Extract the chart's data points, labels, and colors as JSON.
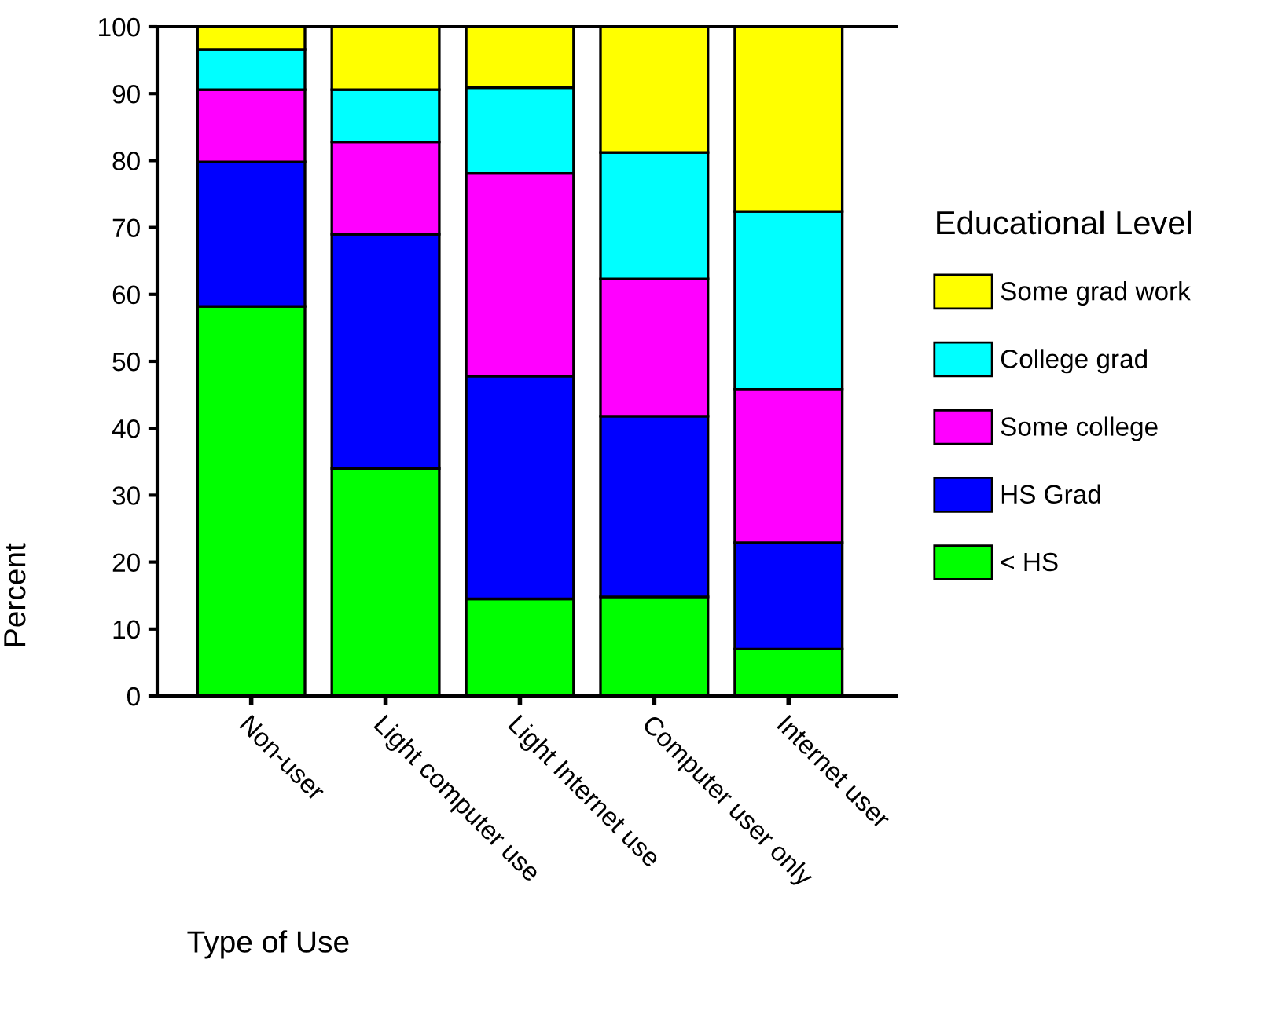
{
  "chart_data": {
    "type": "bar",
    "stacked": true,
    "xlabel": "Type of Use",
    "ylabel": "Percent",
    "legend_title": "Educational Level",
    "categories": [
      "Non-user",
      "Light computer use",
      "Light Internet use",
      "Computer user only",
      "Internet user"
    ],
    "series": [
      {
        "name": "< HS",
        "color": "#00ff00",
        "values": [
          58.2,
          34.0,
          14.5,
          14.8,
          7.0
        ]
      },
      {
        "name": "HS Grad",
        "color": "#0000ff",
        "values": [
          21.6,
          35.0,
          33.3,
          27.0,
          15.9
        ]
      },
      {
        "name": "Some college",
        "color": "#ff00ff",
        "values": [
          10.8,
          13.8,
          30.3,
          20.5,
          22.9
        ]
      },
      {
        "name": "College grad",
        "color": "#00ffff",
        "values": [
          6.0,
          7.8,
          12.8,
          18.9,
          26.6
        ]
      },
      {
        "name": "Some grad work",
        "color": "#ffff00",
        "values": [
          3.4,
          9.4,
          9.1,
          18.8,
          27.6
        ]
      }
    ],
    "ylim": [
      0,
      100
    ],
    "yticks": [
      0,
      10,
      20,
      30,
      40,
      50,
      60,
      70,
      80,
      90,
      100
    ],
    "grid": false,
    "legend": "right"
  }
}
